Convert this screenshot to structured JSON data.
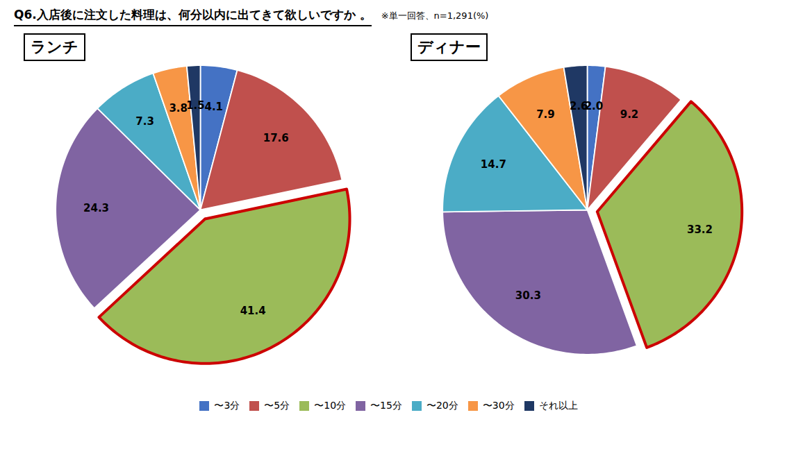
{
  "title": "Q6.入店後に注文した料理は、何分以内に出てきて欲しいですか 。",
  "subtitle": "※単一回答、n=1,291(%)",
  "chart_data": [
    {
      "type": "pie",
      "title": "ランチ",
      "categories": [
        "〜3分",
        "〜5分",
        "〜10分",
        "〜15分",
        "〜20分",
        "〜30分",
        "それ以上"
      ],
      "values": [
        4.1,
        17.6,
        41.4,
        24.3,
        7.3,
        3.8,
        1.5
      ],
      "value_labels": [
        "4.1",
        "17.6",
        "41.4",
        "24.3",
        "7.3",
        "3.8",
        "1.5"
      ],
      "colors": [
        "#4472C4",
        "#C0504D",
        "#9BBB59",
        "#8064A2",
        "#4BACC6",
        "#F79646",
        "#1F3864"
      ],
      "data_labels": true,
      "legend": "bottom"
    },
    {
      "type": "pie",
      "title": "ディナー",
      "categories": [
        "〜3分",
        "〜5分",
        "〜10分",
        "〜15分",
        "〜20分",
        "〜30分",
        "それ以上"
      ],
      "values": [
        2.0,
        9.2,
        33.2,
        30.3,
        14.7,
        7.9,
        2.6
      ],
      "value_labels": [
        "2.0",
        "9.2",
        "33.2",
        "30.3",
        "14.7",
        "7.9",
        "2.6"
      ],
      "colors": [
        "#4472C4",
        "#C0504D",
        "#9BBB59",
        "#8064A2",
        "#4BACC6",
        "#F79646",
        "#1F3864"
      ],
      "data_labels": true,
      "legend": "bottom"
    }
  ]
}
